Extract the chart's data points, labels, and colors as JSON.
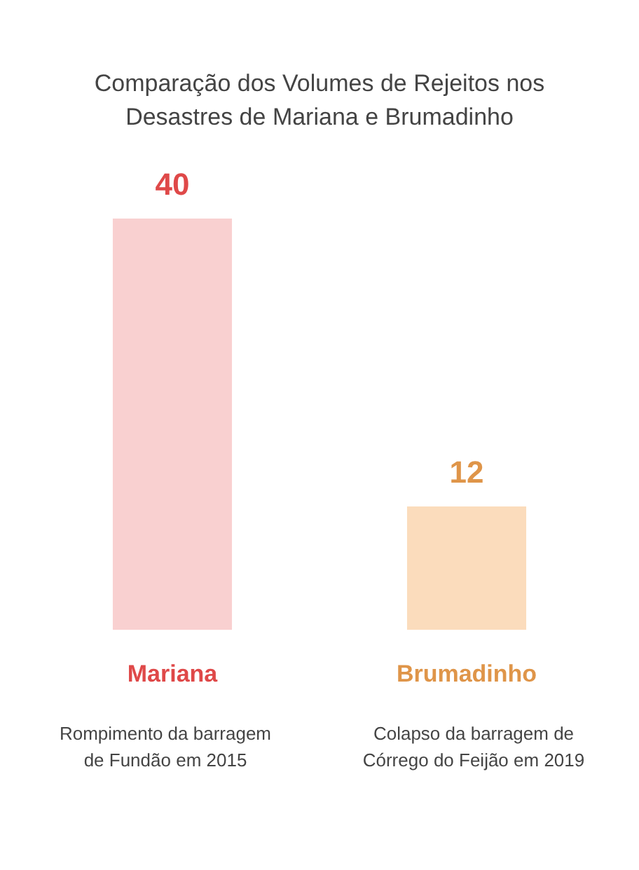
{
  "chart_data": {
    "type": "bar",
    "title": "Comparação dos Volumes de Rejeitos nos Desastres de Mariana e Brumadinho",
    "categories": [
      "Mariana",
      "Brumadinho"
    ],
    "values": [
      40,
      12
    ],
    "colors": [
      "#f9d0d0",
      "#fbdcbc"
    ],
    "data_labels": true,
    "grid": false,
    "legend": false,
    "annotations": [
      "Rompimento da barragem de Fundão em 2015",
      "Colapso da barragem de Córrego do Feijão em 2019"
    ]
  }
}
